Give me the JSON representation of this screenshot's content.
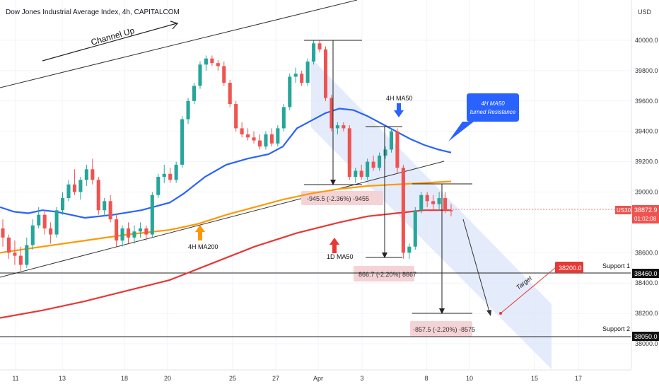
{
  "title": "Dow Jones Industrial Average Index, 4h, CAPITALCOM",
  "currency": "USD",
  "colors": {
    "up": "#26a69a",
    "down": "#ef5350",
    "ma50_4h": "#2962ff",
    "ma200_4h": "#ff9800",
    "ma50_1d": "#e53935",
    "channel_fill": "#dbe4fa",
    "measure_fill": "#f4d3d6"
  },
  "chart_data": {
    "type": "candlestick",
    "symbol": "US30",
    "last_price": "38872.9",
    "countdown": "01:02:08",
    "y_ticks": [
      "40000.0",
      "39800.0",
      "39600.0",
      "39400.0",
      "39200.0",
      "39000.0",
      "38600.0",
      "38400.0",
      "38200.0",
      "38000.0"
    ],
    "x_ticks": [
      "11",
      "13",
      "18",
      "20",
      "25",
      "27",
      "Apr",
      "3",
      "8",
      "10",
      "15",
      "17"
    ],
    "ohlc": [
      [
        38760,
        38820,
        38640,
        38700
      ],
      [
        38700,
        38720,
        38560,
        38600
      ],
      [
        38600,
        38680,
        38520,
        38580
      ],
      [
        38580,
        38640,
        38480,
        38520
      ],
      [
        38520,
        38700,
        38500,
        38650
      ],
      [
        38650,
        38820,
        38620,
        38780
      ],
      [
        38780,
        38900,
        38760,
        38850
      ],
      [
        38850,
        38880,
        38720,
        38760
      ],
      [
        38760,
        38800,
        38660,
        38720
      ],
      [
        38720,
        38900,
        38700,
        38880
      ],
      [
        38880,
        39000,
        38850,
        38960
      ],
      [
        38960,
        39080,
        38940,
        39050
      ],
      [
        39050,
        39150,
        38980,
        39000
      ],
      [
        39000,
        39100,
        38950,
        39080
      ],
      [
        39080,
        39180,
        39040,
        39150
      ],
      [
        39150,
        39220,
        39050,
        39080
      ],
      [
        39080,
        39100,
        38850,
        38880
      ],
      [
        38880,
        38960,
        38840,
        38940
      ],
      [
        38940,
        38980,
        38800,
        38820
      ],
      [
        38820,
        38860,
        38640,
        38680
      ],
      [
        38680,
        38780,
        38640,
        38760
      ],
      [
        38760,
        38800,
        38660,
        38700
      ],
      [
        38700,
        38780,
        38660,
        38740
      ],
      [
        38740,
        38800,
        38700,
        38760
      ],
      [
        38760,
        38780,
        38680,
        38720
      ],
      [
        38720,
        39000,
        38700,
        38980
      ],
      [
        38980,
        39120,
        38960,
        39100
      ],
      [
        39100,
        39180,
        39060,
        39120
      ],
      [
        39120,
        39160,
        39060,
        39080
      ],
      [
        39080,
        39200,
        39060,
        39180
      ],
      [
        39180,
        39500,
        39160,
        39480
      ],
      [
        39480,
        39620,
        39450,
        39600
      ],
      [
        39600,
        39720,
        39580,
        39700
      ],
      [
        39700,
        39860,
        39680,
        39840
      ],
      [
        39840,
        39900,
        39800,
        39880
      ],
      [
        39880,
        39900,
        39830,
        39850
      ],
      [
        39850,
        39870,
        39800,
        39830
      ],
      [
        39830,
        39860,
        39700,
        39720
      ],
      [
        39720,
        39740,
        39560,
        39580
      ],
      [
        39580,
        39600,
        39400,
        39420
      ],
      [
        39420,
        39460,
        39360,
        39380
      ],
      [
        39380,
        39420,
        39340,
        39360
      ],
      [
        39360,
        39400,
        39320,
        39340
      ],
      [
        39340,
        39380,
        39280,
        39300
      ],
      [
        39300,
        39400,
        39280,
        39380
      ],
      [
        39380,
        39420,
        39300,
        39320
      ],
      [
        39320,
        39440,
        39300,
        39420
      ],
      [
        39420,
        39580,
        39400,
        39560
      ],
      [
        39560,
        39780,
        39540,
        39760
      ],
      [
        39760,
        39820,
        39720,
        39780
      ],
      [
        39780,
        39800,
        39700,
        39720
      ],
      [
        39720,
        39880,
        39700,
        39860
      ],
      [
        39860,
        40000,
        39840,
        39980
      ],
      [
        39980,
        40000,
        39920,
        39940
      ],
      [
        39940,
        39960,
        39600,
        39620
      ],
      [
        39620,
        39640,
        39400,
        39420
      ],
      [
        39420,
        39460,
        39380,
        39440
      ],
      [
        39440,
        39460,
        39400,
        39420
      ],
      [
        39420,
        39440,
        39080,
        39100
      ],
      [
        39100,
        39160,
        39060,
        39140
      ],
      [
        39140,
        39180,
        39080,
        39100
      ],
      [
        39100,
        39220,
        39080,
        39200
      ],
      [
        39200,
        39240,
        39140,
        39160
      ],
      [
        39160,
        39260,
        39140,
        39240
      ],
      [
        39240,
        39300,
        39220,
        39280
      ],
      [
        39280,
        39420,
        39260,
        39400
      ],
      [
        39400,
        39420,
        39120,
        39160
      ],
      [
        39160,
        39180,
        38560,
        38600
      ],
      [
        38600,
        38660,
        38560,
        38640
      ],
      [
        38640,
        38900,
        38620,
        38880
      ],
      [
        38880,
        39000,
        38860,
        38980
      ],
      [
        38980,
        39000,
        38900,
        38940
      ],
      [
        38940,
        38980,
        38880,
        38920
      ],
      [
        38920,
        39000,
        38880,
        38960
      ],
      [
        38960,
        39000,
        38860,
        38880
      ],
      [
        38880,
        38920,
        38840,
        38873
      ]
    ],
    "series": [
      {
        "name": "4H MA50",
        "values": [
          [
            0,
            38900
          ],
          [
            20,
            38870
          ],
          [
            40,
            38860
          ],
          [
            60,
            38880
          ],
          [
            80,
            38870
          ],
          [
            100,
            38850
          ],
          [
            120,
            38830
          ],
          [
            160,
            38850
          ],
          [
            200,
            38880
          ],
          [
            240,
            38930
          ],
          [
            260,
            38990
          ],
          [
            290,
            39100
          ],
          [
            320,
            39180
          ],
          [
            350,
            39220
          ],
          [
            380,
            39250
          ],
          [
            400,
            39300
          ],
          [
            420,
            39420
          ],
          [
            440,
            39470
          ],
          [
            460,
            39520
          ],
          [
            480,
            39550
          ],
          [
            500,
            39540
          ],
          [
            520,
            39500
          ],
          [
            540,
            39450
          ],
          [
            560,
            39400
          ],
          [
            580,
            39350
          ],
          [
            600,
            39310
          ],
          [
            620,
            39280
          ],
          [
            638,
            39260
          ]
        ]
      },
      {
        "name": "4H MA200",
        "values": [
          [
            0,
            38600
          ],
          [
            60,
            38640
          ],
          [
            120,
            38680
          ],
          [
            180,
            38720
          ],
          [
            240,
            38750
          ],
          [
            280,
            38790
          ],
          [
            320,
            38850
          ],
          [
            360,
            38900
          ],
          [
            400,
            38950
          ],
          [
            440,
            38990
          ],
          [
            480,
            39020
          ],
          [
            520,
            39040
          ],
          [
            560,
            39050
          ],
          [
            600,
            39060
          ],
          [
            638,
            39070
          ]
        ]
      },
      {
        "name": "1D MA50",
        "values": [
          [
            0,
            38170
          ],
          [
            60,
            38220
          ],
          [
            120,
            38280
          ],
          [
            180,
            38350
          ],
          [
            240,
            38420
          ],
          [
            300,
            38530
          ],
          [
            360,
            38640
          ],
          [
            420,
            38730
          ],
          [
            480,
            38800
          ],
          [
            520,
            38840
          ],
          [
            560,
            38860
          ],
          [
            600,
            38880
          ],
          [
            638,
            38880
          ]
        ]
      }
    ],
    "levels": [
      {
        "name": "Support 1",
        "value": "38460.0",
        "y": 38460
      },
      {
        "name": "Support 2",
        "value": "38050.0",
        "y": 38050
      }
    ],
    "target": {
      "label": "38200.0",
      "value": 38200
    }
  },
  "annotations": {
    "channel_up": "Channel Up",
    "ma50_4h": "4H MA50",
    "ma200_4h": "4H MA200",
    "ma50_1d": "1D MA50",
    "callout": [
      "4H MA50",
      "turned Resistance"
    ],
    "target": "Target",
    "measure1": "-945.5 (-2.36%) -9455",
    "measure2": "866.7 (-2.20%)  8667",
    "measure3": "-857.5 (-2.20%) -8575"
  }
}
